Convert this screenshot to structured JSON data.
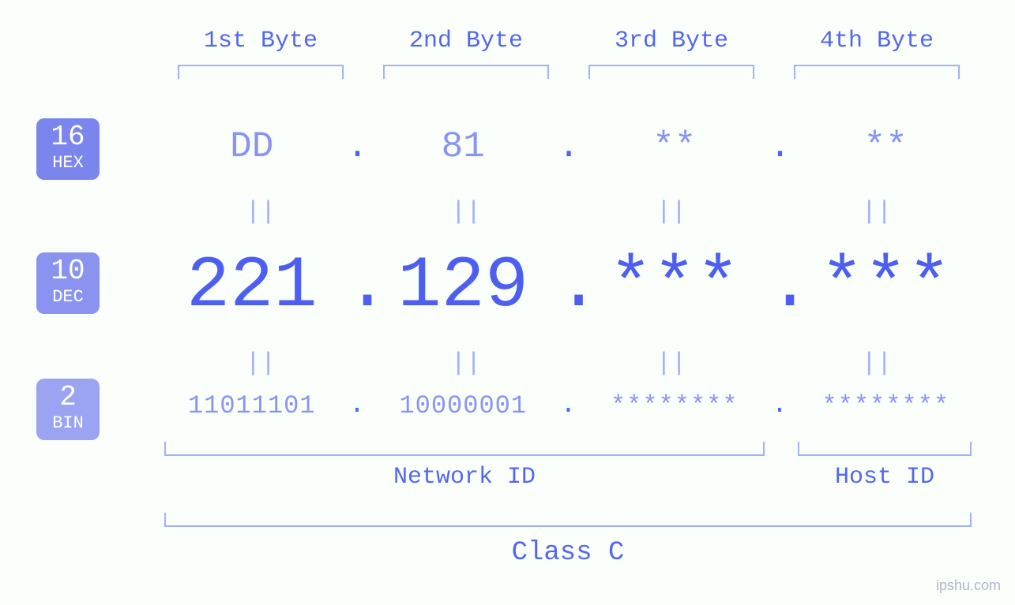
{
  "headers": {
    "b1": "1st Byte",
    "b2": "2nd Byte",
    "b3": "3rd Byte",
    "b4": "4th Byte"
  },
  "badges": {
    "hex": {
      "num": "16",
      "label": "HEX",
      "bg": "#7a86ee"
    },
    "dec": {
      "num": "10",
      "label": "DEC",
      "bg": "#8a94f0"
    },
    "bin": {
      "num": "2",
      "label": "BIN",
      "bg": "#9aa4f3"
    }
  },
  "hex": {
    "b1": "DD",
    "b2": "81",
    "b3": "**",
    "b4": "**"
  },
  "dec": {
    "b1": "221",
    "b2": "129",
    "b3": "***",
    "b4": "***"
  },
  "bin": {
    "b1": "11011101",
    "b2": "10000001",
    "b3": "********",
    "b4": "********"
  },
  "separators": {
    "dot": ".",
    "equals": "||"
  },
  "labels": {
    "network_id": "Network ID",
    "host_id": "Host ID",
    "class": "Class C"
  },
  "watermark": "ipshu.com",
  "style": {
    "background_color": "#fafffc",
    "text_primary": "#5566ee",
    "text_light": "#8a94f0",
    "bracket_color": "#a5b0f5",
    "dec_color": "#4d5ff0",
    "font_family": "monospace",
    "header_fontsize": 30,
    "hex_fontsize": 46,
    "dec_fontsize": 92,
    "bin_fontsize": 32,
    "equals_fontsize": 32,
    "label_fontsize": 30,
    "class_fontsize": 34,
    "badge_num_fontsize": 36,
    "badge_label_fontsize": 22
  },
  "structure": {
    "type": "infographic",
    "description": "IP address byte breakdown showing hex/dec/bin representations, network/host ID split, and class",
    "bytes": 4,
    "network_id_bytes": [
      1,
      2,
      3
    ],
    "host_id_bytes": [
      4
    ],
    "ip_class": "C"
  }
}
